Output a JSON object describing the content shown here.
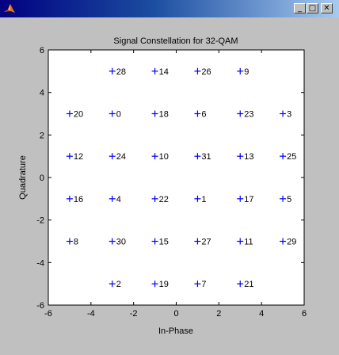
{
  "window": {
    "minimize_glyph": "_",
    "maximize_glyph": "□",
    "close_glyph": "✕"
  },
  "colors": {
    "marker": "#0000ff",
    "axes_background": "#ffffff",
    "figure_background": "#c0c0c0"
  },
  "chart_data": {
    "type": "scatter",
    "title": "Signal Constellation for 32-QAM",
    "xlabel": "In-Phase",
    "ylabel": "Quadrature",
    "xlim": [
      -6,
      6
    ],
    "ylim": [
      -6,
      6
    ],
    "xticks": [
      -6,
      -4,
      -2,
      0,
      2,
      4,
      6
    ],
    "yticks": [
      -6,
      -4,
      -2,
      0,
      2,
      4,
      6
    ],
    "grid": false,
    "marker": "+",
    "points": [
      {
        "x": -3,
        "y": 5,
        "label": "28"
      },
      {
        "x": -1,
        "y": 5,
        "label": "14"
      },
      {
        "x": 1,
        "y": 5,
        "label": "26"
      },
      {
        "x": 3,
        "y": 5,
        "label": "9"
      },
      {
        "x": -5,
        "y": 3,
        "label": "20"
      },
      {
        "x": -3,
        "y": 3,
        "label": "0"
      },
      {
        "x": -1,
        "y": 3,
        "label": "18"
      },
      {
        "x": 1,
        "y": 3,
        "label": "6"
      },
      {
        "x": 3,
        "y": 3,
        "label": "23"
      },
      {
        "x": 5,
        "y": 3,
        "label": "3"
      },
      {
        "x": -5,
        "y": 1,
        "label": "12"
      },
      {
        "x": -3,
        "y": 1,
        "label": "24"
      },
      {
        "x": -1,
        "y": 1,
        "label": "10"
      },
      {
        "x": 1,
        "y": 1,
        "label": "31"
      },
      {
        "x": 3,
        "y": 1,
        "label": "13"
      },
      {
        "x": 5,
        "y": 1,
        "label": "25"
      },
      {
        "x": -5,
        "y": -1,
        "label": "16"
      },
      {
        "x": -3,
        "y": -1,
        "label": "4"
      },
      {
        "x": -1,
        "y": -1,
        "label": "22"
      },
      {
        "x": 1,
        "y": -1,
        "label": "1"
      },
      {
        "x": 3,
        "y": -1,
        "label": "17"
      },
      {
        "x": 5,
        "y": -1,
        "label": "5"
      },
      {
        "x": -5,
        "y": -3,
        "label": "8"
      },
      {
        "x": -3,
        "y": -3,
        "label": "30"
      },
      {
        "x": -1,
        "y": -3,
        "label": "15"
      },
      {
        "x": 1,
        "y": -3,
        "label": "27"
      },
      {
        "x": 3,
        "y": -3,
        "label": "11"
      },
      {
        "x": 5,
        "y": -3,
        "label": "29"
      },
      {
        "x": -3,
        "y": -5,
        "label": "2"
      },
      {
        "x": -1,
        "y": -5,
        "label": "19"
      },
      {
        "x": 1,
        "y": -5,
        "label": "7"
      },
      {
        "x": 3,
        "y": -5,
        "label": "21"
      }
    ]
  }
}
